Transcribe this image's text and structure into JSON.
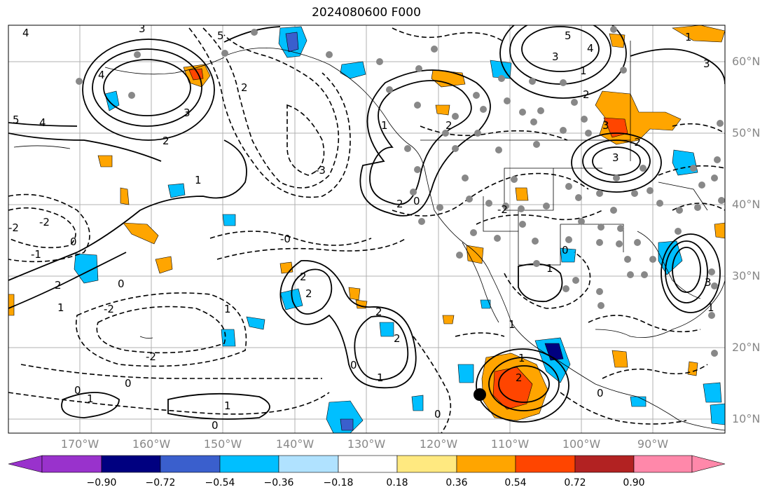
{
  "title": "2024080600 F000",
  "lat_labels": [
    "60°N",
    "50°N",
    "40°N",
    "30°N",
    "20°N",
    "10°N"
  ],
  "lon_labels": [
    "170°W",
    "160°W",
    "150°W",
    "140°W",
    "130°W",
    "120°W",
    "110°W",
    "100°W",
    "90°W"
  ],
  "contour_labels": [
    "5",
    "4",
    "3",
    "2",
    "1",
    "0",
    "-0",
    "-1",
    "-2",
    "-3"
  ],
  "colorbar": {
    "ticks": [
      "−0.90",
      "−0.72",
      "−0.54",
      "−0.36",
      "−0.18",
      "0.18",
      "0.36",
      "0.54",
      "0.72",
      "0.90"
    ],
    "colors": [
      "#9932cc",
      "#000080",
      "#3a5fcd",
      "#00bfff",
      "#b0e2ff",
      "#ffffff",
      "#ffe980",
      "#ffa500",
      "#ff4500",
      "#b22222",
      "#ff88aa"
    ]
  }
}
